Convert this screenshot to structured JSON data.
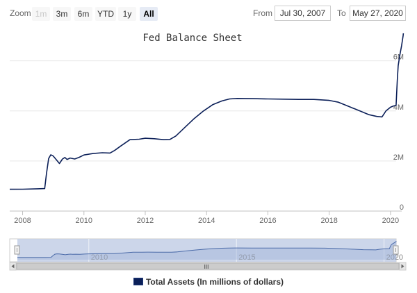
{
  "zoom": {
    "label": "Zoom",
    "buttons": [
      {
        "label": "1m",
        "state": "disabled"
      },
      {
        "label": "3m",
        "state": "normal"
      },
      {
        "label": "6m",
        "state": "normal"
      },
      {
        "label": "YTD",
        "state": "normal"
      },
      {
        "label": "1y",
        "state": "normal"
      },
      {
        "label": "All",
        "state": "selected"
      }
    ]
  },
  "range": {
    "from_label": "From",
    "from_value": "Jul 30, 2007",
    "to_label": "To",
    "to_value": "May 27, 2020"
  },
  "chart_data": {
    "type": "line",
    "title": "Fed Balance Sheet",
    "series": [
      {
        "name": "Total Assets (In millions of dollars)",
        "color": "#0b1f58",
        "points": [
          [
            2007.58,
            0.87
          ],
          [
            2008.0,
            0.875
          ],
          [
            2008.5,
            0.89
          ],
          [
            2008.72,
            0.9
          ],
          [
            2008.78,
            1.5
          ],
          [
            2008.85,
            2.1
          ],
          [
            2008.92,
            2.25
          ],
          [
            2009.0,
            2.2
          ],
          [
            2009.1,
            2.05
          ],
          [
            2009.2,
            1.9
          ],
          [
            2009.3,
            2.08
          ],
          [
            2009.38,
            2.14
          ],
          [
            2009.45,
            2.06
          ],
          [
            2009.55,
            2.12
          ],
          [
            2009.7,
            2.08
          ],
          [
            2009.85,
            2.15
          ],
          [
            2010.0,
            2.24
          ],
          [
            2010.3,
            2.3
          ],
          [
            2010.6,
            2.33
          ],
          [
            2010.85,
            2.32
          ],
          [
            2011.0,
            2.42
          ],
          [
            2011.2,
            2.6
          ],
          [
            2011.5,
            2.85
          ],
          [
            2011.8,
            2.87
          ],
          [
            2012.0,
            2.91
          ],
          [
            2012.3,
            2.89
          ],
          [
            2012.6,
            2.85
          ],
          [
            2012.8,
            2.86
          ],
          [
            2013.0,
            3.0
          ],
          [
            2013.3,
            3.35
          ],
          [
            2013.6,
            3.7
          ],
          [
            2013.9,
            4.0
          ],
          [
            2014.2,
            4.25
          ],
          [
            2014.5,
            4.4
          ],
          [
            2014.75,
            4.48
          ],
          [
            2015.0,
            4.5
          ],
          [
            2015.5,
            4.49
          ],
          [
            2016.0,
            4.48
          ],
          [
            2016.5,
            4.47
          ],
          [
            2017.0,
            4.46
          ],
          [
            2017.5,
            4.46
          ],
          [
            2018.0,
            4.42
          ],
          [
            2018.3,
            4.35
          ],
          [
            2018.6,
            4.2
          ],
          [
            2019.0,
            4.0
          ],
          [
            2019.3,
            3.85
          ],
          [
            2019.55,
            3.78
          ],
          [
            2019.72,
            3.76
          ],
          [
            2019.85,
            4.0
          ],
          [
            2020.0,
            4.15
          ],
          [
            2020.1,
            4.2
          ],
          [
            2020.18,
            4.22
          ],
          [
            2020.22,
            5.2
          ],
          [
            2020.25,
            5.8
          ],
          [
            2020.3,
            6.2
          ],
          [
            2020.36,
            6.6
          ],
          [
            2020.41,
            7.0
          ],
          [
            2020.42,
            7.1
          ]
        ]
      }
    ],
    "x_ticks": [
      {
        "value": 2008,
        "label": "2008"
      },
      {
        "value": 2010,
        "label": "2010"
      },
      {
        "value": 2012,
        "label": "2012"
      },
      {
        "value": 2014,
        "label": "2014"
      },
      {
        "value": 2016,
        "label": "2016"
      },
      {
        "value": 2018,
        "label": "2018"
      },
      {
        "value": 2020,
        "label": "2020"
      }
    ],
    "y_ticks": [
      {
        "value": 0,
        "label": "0"
      },
      {
        "value": 2,
        "label": "2M"
      },
      {
        "value": 4,
        "label": "4M"
      },
      {
        "value": 6,
        "label": "6M"
      }
    ],
    "xlim": [
      2007.58,
      2020.41
    ],
    "ylim": [
      0,
      7.2
    ],
    "ylabel": "",
    "xlabel": "",
    "grid": "horizontal",
    "legend_position": "bottom-center",
    "navigator": {
      "ticks": [
        {
          "value": 2010,
          "label": "2010"
        },
        {
          "value": 2015,
          "label": "2015"
        },
        {
          "value": 2020,
          "label": "2020"
        }
      ],
      "scrollbar_grip": "III"
    }
  }
}
